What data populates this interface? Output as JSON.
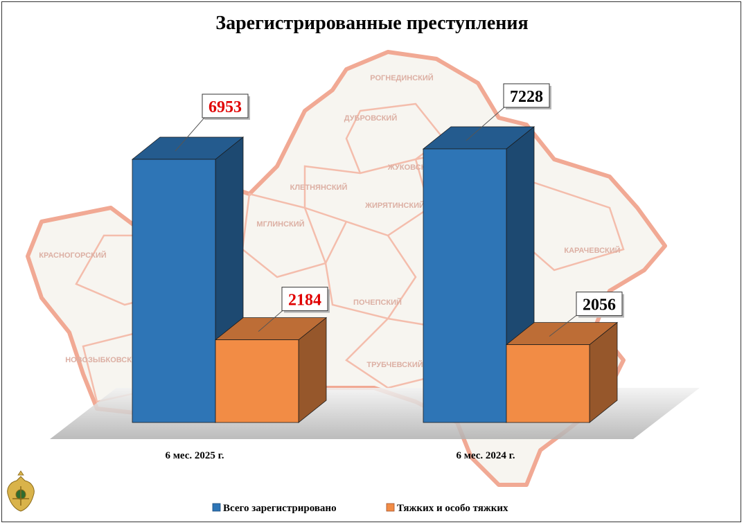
{
  "chart_data": {
    "type": "bar",
    "title": "Зарегистрированные преступления",
    "categories": [
      "6 мес. 2025 г.",
      "6 мес. 2024 г."
    ],
    "series": [
      {
        "name": "Всего зарегистрировано",
        "values": [
          6953,
          7228
        ],
        "color": "#2E75B6",
        "label_color": "#E00000"
      },
      {
        "name": "Тяжких и особо тяжких",
        "values": [
          2184,
          2056
        ],
        "color": "#F28C45",
        "label_color": "#000000"
      }
    ],
    "value_labels": [
      {
        "text": "6953",
        "color": "#E00000"
      },
      {
        "text": "2184",
        "color": "#E00000"
      },
      {
        "text": "7228",
        "color": "#000000"
      },
      {
        "text": "2056",
        "color": "#000000"
      }
    ],
    "ylim": [
      0,
      8000
    ],
    "legend_position": "bottom",
    "background": "map-of-bryansk-region",
    "emblem": "prosecutor-emblem-icon"
  },
  "map_labels": [
    "ДУБРОВСКИЙ",
    "РОГНЕДИНСКИЙ",
    "ЖУКОВСКИЙ",
    "КЛЕТНЯНСКИЙ",
    "ЖИРЯТИНСКИЙ",
    "МГЛИНСКИЙ",
    "ПОЧЕПСКИЙ",
    "КАРАЧЕВСКИЙ",
    "КРАСНОГОРСКИЙ",
    "ТРУБЧЕВСКИЙ",
    "НОВОЗЫБКОВСКИЙ"
  ]
}
